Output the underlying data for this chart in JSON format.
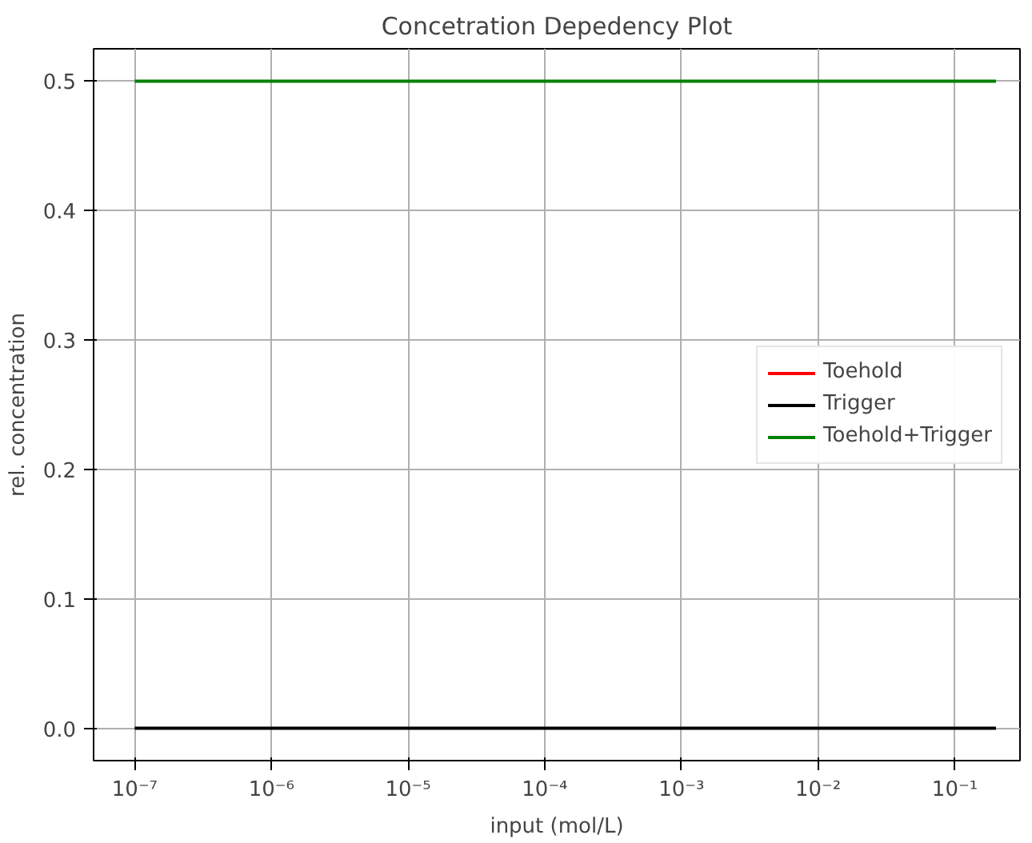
{
  "chart_data": {
    "type": "line",
    "title": "Concetration Depedency Plot",
    "xlabel": "input (mol/L)",
    "ylabel": "rel. concentration",
    "x": [
      1e-07,
      0.2
    ],
    "series": [
      {
        "name": "Toehold",
        "color": "#ff0000",
        "values": [
          null,
          null
        ]
      },
      {
        "name": "Trigger",
        "color": "#000000",
        "values": [
          0,
          0
        ]
      },
      {
        "name": "Toehold+Trigger",
        "color": "#008000",
        "values": [
          0.5,
          0.5
        ]
      }
    ],
    "log": "x",
    "xlim": [
      5e-08,
      0.3
    ],
    "ylim": [
      -0.025,
      0.525
    ],
    "xticks": [
      {
        "value": 1e-07,
        "label": "10⁻⁷"
      },
      {
        "value": 1e-06,
        "label": "10⁻⁶"
      },
      {
        "value": 1e-05,
        "label": "10⁻⁵"
      },
      {
        "value": 0.0001,
        "label": "10⁻⁴"
      },
      {
        "value": 0.001,
        "label": "10⁻³"
      },
      {
        "value": 0.01,
        "label": "10⁻²"
      },
      {
        "value": 0.1,
        "label": "10⁻¹"
      }
    ],
    "yticks": [
      {
        "value": 0,
        "label": "0.0"
      },
      {
        "value": 0.1,
        "label": "0.1"
      },
      {
        "value": 0.2,
        "label": "0.2"
      },
      {
        "value": 0.3,
        "label": "0.3"
      },
      {
        "value": 0.4,
        "label": "0.4"
      },
      {
        "value": 0.5,
        "label": "0.5"
      }
    ],
    "grid": true,
    "legend": "right",
    "marker": "none",
    "line_style": "solid"
  }
}
